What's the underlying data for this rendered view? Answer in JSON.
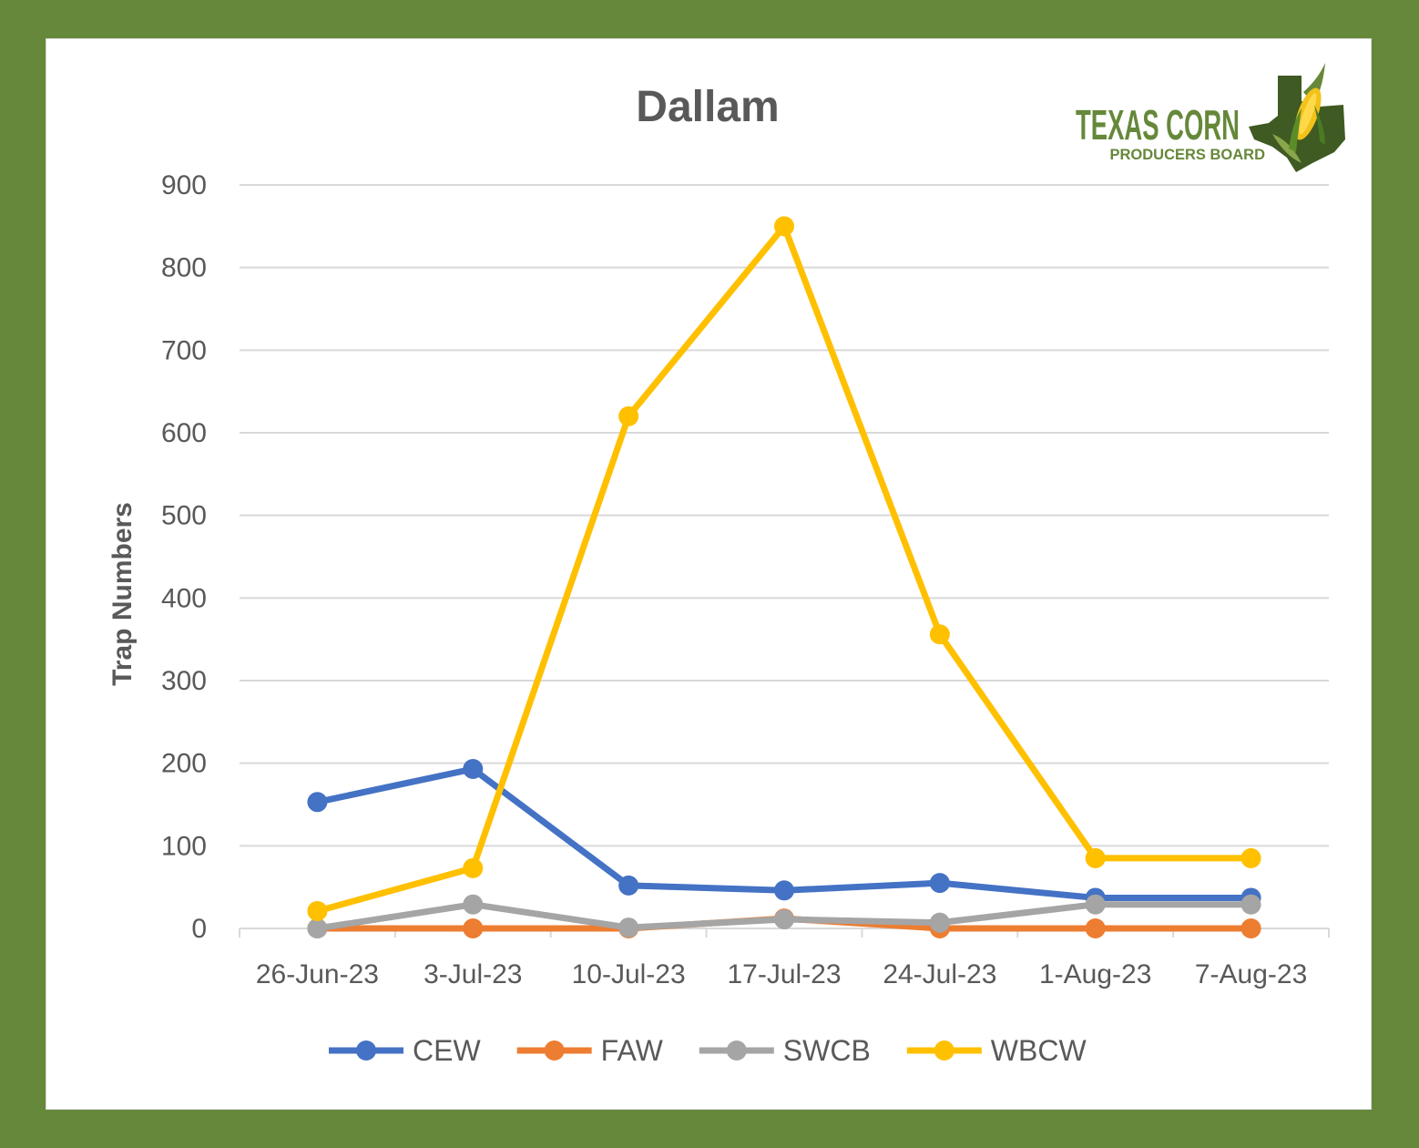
{
  "logo": {
    "line1": "TEXAS CORN",
    "line2": "PRODUCERS BOARD"
  },
  "colors": {
    "frame": "#66883a",
    "logo_green": "#66883a",
    "text": "#595959",
    "grid": "#d9d9d9"
  },
  "chart_data": {
    "type": "line",
    "title": "Dallam",
    "xlabel": "",
    "ylabel": "Trap Numbers",
    "categories": [
      "26-Jun-23",
      "3-Jul-23",
      "10-Jul-23",
      "17-Jul-23",
      "24-Jul-23",
      "1-Aug-23",
      "7-Aug-23"
    ],
    "ylim": [
      0,
      900
    ],
    "yticks": [
      0,
      100,
      200,
      300,
      400,
      500,
      600,
      700,
      800,
      900
    ],
    "grid": true,
    "legend": "bottom",
    "series": [
      {
        "name": "CEW",
        "color": "#4472c4",
        "values": [
          153,
          193,
          52,
          46,
          55,
          37,
          37
        ]
      },
      {
        "name": "FAW",
        "color": "#ed7d31",
        "values": [
          0,
          0,
          0,
          12,
          0,
          0,
          0
        ]
      },
      {
        "name": "SWCB",
        "color": "#a5a5a5",
        "values": [
          0,
          29,
          1,
          11,
          7,
          29,
          29
        ]
      },
      {
        "name": "WBCW",
        "color": "#ffc000",
        "values": [
          21,
          73,
          620,
          850,
          356,
          85,
          85
        ]
      }
    ]
  }
}
